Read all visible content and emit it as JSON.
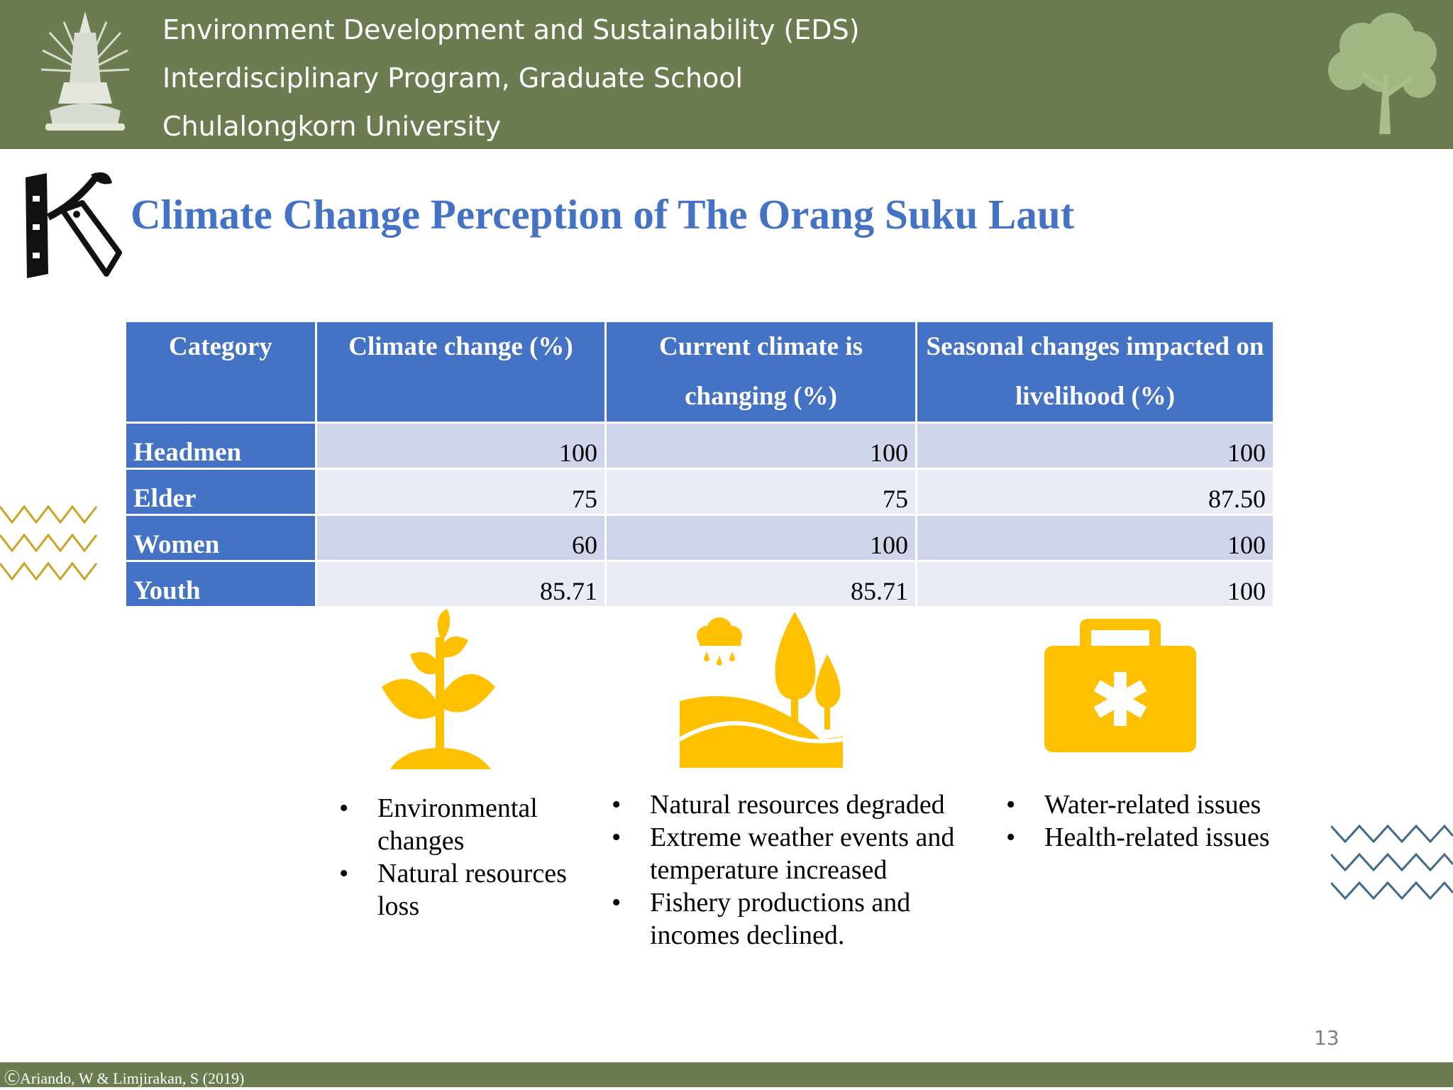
{
  "header": {
    "line1": "Environment Development and Sustainability (EDS)",
    "line2": "Interdisciplinary Program, Graduate School",
    "line3": "Chulalongkorn University"
  },
  "title": "Climate Change Perception of The Orang Suku Laut",
  "table": {
    "headers": [
      "Category",
      "Climate change (%)",
      "Current climate is changing (%)",
      "Seasonal changes impacted on livelihood (%)"
    ],
    "rows": [
      {
        "category": "Headmen",
        "climate_change": "100",
        "current_changing": "100",
        "seasonal_impact": "100"
      },
      {
        "category": "Elder",
        "climate_change": "75",
        "current_changing": "75",
        "seasonal_impact": "87.50"
      },
      {
        "category": "Women",
        "climate_change": "60",
        "current_changing": "100",
        "seasonal_impact": "100"
      },
      {
        "category": "Youth",
        "climate_change": "85.71",
        "current_changing": "85.71",
        "seasonal_impact": "100"
      }
    ]
  },
  "icons": {
    "plant": "plant-icon",
    "landscape": "landscape-icon",
    "medical_kit": "first-aid-kit-icon",
    "accent_color": "#ffc000"
  },
  "lists": {
    "col1": [
      "Environmental changes",
      "Natural resources loss"
    ],
    "col2": [
      "Natural resources degraded",
      "Extreme weather events and temperature increased",
      "Fishery productions and incomes declined."
    ],
    "col3": [
      "Water-related issues",
      "Health-related issues"
    ]
  },
  "page_number": "13",
  "footer": "ⒸAriando, W & Limjirakan, S (2019)",
  "colors": {
    "header_green": "#6b7d50",
    "title_blue": "#4472c4",
    "row_odd": "#cfd5ea",
    "row_even": "#e9ebf5"
  }
}
